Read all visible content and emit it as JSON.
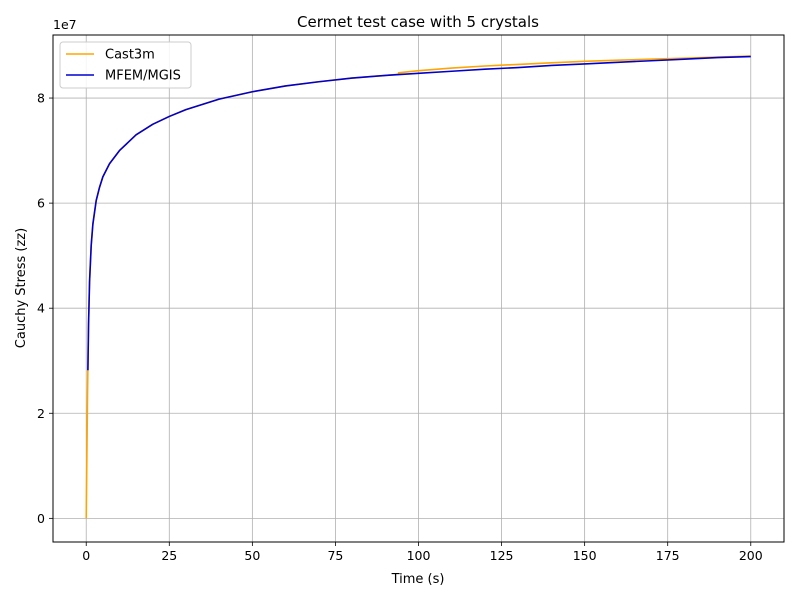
{
  "chart_data": {
    "type": "line",
    "title": "Cermet test case with 5 crystals",
    "xlabel": "Time (s)",
    "ylabel": "Cauchy Stress (zz)",
    "y_multiplier_label": "1e7",
    "y_multiplier": 10000000,
    "xlim": [
      -10,
      210
    ],
    "ylim": [
      -0.45,
      9.2
    ],
    "x_ticks": [
      0,
      25,
      50,
      75,
      100,
      125,
      150,
      175,
      200
    ],
    "y_ticks": [
      0,
      2,
      4,
      6,
      8
    ],
    "grid": true,
    "legend_position": "top-left",
    "series": [
      {
        "name": "Cast3m",
        "color": "#ffa500",
        "x": [
          0,
          0.1,
          0.2,
          0.3,
          0.4,
          0.5,
          0.7,
          1,
          1.5,
          2,
          3,
          4,
          5,
          7,
          10,
          15,
          20,
          25,
          30,
          40,
          50,
          60,
          70,
          80,
          90,
          93.5,
          94,
          94,
          100,
          110,
          120,
          130,
          140,
          150,
          160,
          170,
          180,
          190,
          200
        ],
        "y": [
          0,
          0.6,
          1.2,
          1.8,
          2.4,
          2.85,
          3.7,
          4.5,
          5.2,
          5.6,
          6.05,
          6.3,
          6.5,
          6.75,
          7.0,
          7.3,
          7.5,
          7.65,
          7.78,
          7.98,
          8.12,
          8.23,
          8.31,
          8.38,
          8.43,
          8.45,
          8.45,
          8.48,
          8.52,
          8.57,
          8.61,
          8.64,
          8.67,
          8.7,
          8.72,
          8.74,
          8.76,
          8.78,
          8.8
        ]
      },
      {
        "name": "MFEM/MGIS",
        "color": "#0000cd",
        "x": [
          0.5,
          0.7,
          1,
          1.5,
          2,
          3,
          4,
          5,
          7,
          10,
          15,
          20,
          25,
          30,
          40,
          50,
          60,
          70,
          80,
          90,
          100,
          110,
          120,
          130,
          140,
          150,
          160,
          170,
          180,
          190,
          200
        ],
        "y": [
          2.82,
          3.7,
          4.5,
          5.2,
          5.6,
          6.05,
          6.3,
          6.5,
          6.75,
          7.0,
          7.3,
          7.5,
          7.65,
          7.78,
          7.98,
          8.12,
          8.23,
          8.31,
          8.38,
          8.43,
          8.47,
          8.51,
          8.55,
          8.58,
          8.62,
          8.65,
          8.68,
          8.71,
          8.74,
          8.77,
          8.79
        ]
      }
    ]
  }
}
